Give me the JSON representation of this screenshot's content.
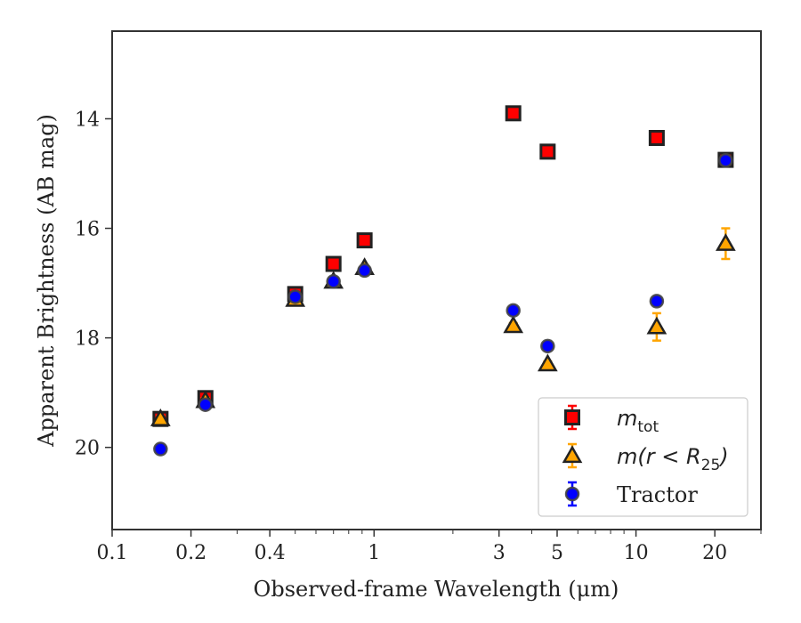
{
  "chart_data": {
    "type": "scatter",
    "xscale": "log",
    "yaxis_inverted": true,
    "xlim": [
      0.1,
      30
    ],
    "ylim": [
      21.5,
      12.4
    ],
    "xlabel": "Observed-frame Wavelength (μm)",
    "ylabel": "Apparent Brightness (AB mag)",
    "x_ticks": [
      {
        "value": 0.1,
        "label": "0.1"
      },
      {
        "value": 0.2,
        "label": "0.2"
      },
      {
        "value": 0.4,
        "label": "0.4"
      },
      {
        "value": 1,
        "label": "1"
      },
      {
        "value": 3,
        "label": "3"
      },
      {
        "value": 5,
        "label": "5"
      },
      {
        "value": 10,
        "label": "10"
      },
      {
        "value": 20,
        "label": "20"
      }
    ],
    "y_ticks": [
      {
        "value": 14,
        "label": "14"
      },
      {
        "value": 16,
        "label": "16"
      },
      {
        "value": 18,
        "label": "18"
      },
      {
        "value": 20,
        "label": "20"
      }
    ],
    "grid": false,
    "legend_position": "bottom-right",
    "series": [
      {
        "name": "m_tot",
        "legend_label": "m",
        "legend_sub": "tot",
        "marker": "square",
        "color": "#ff0000",
        "errbar_color": "#ff0000",
        "points": [
          {
            "x": 0.153,
            "y": 19.48,
            "err": 0.05
          },
          {
            "x": 0.227,
            "y": 19.1,
            "err": 0.05
          },
          {
            "x": 0.5,
            "y": 17.2,
            "err": 0.05
          },
          {
            "x": 0.7,
            "y": 16.65,
            "err": 0.05
          },
          {
            "x": 0.92,
            "y": 16.22,
            "err": 0.05
          },
          {
            "x": 3.4,
            "y": 13.9,
            "err": 0.05
          },
          {
            "x": 4.6,
            "y": 14.6,
            "err": 0.05
          },
          {
            "x": 12.0,
            "y": 14.35,
            "err": 0.05
          },
          {
            "x": 22.0,
            "y": 14.75,
            "err": 0.05
          }
        ]
      },
      {
        "name": "m(r<R25)",
        "legend_label": "m(r < R",
        "legend_sub": "25",
        "legend_tail": ")",
        "marker": "triangle",
        "color": "#ffa500",
        "errbar_color": "#ffa500",
        "points": [
          {
            "x": 0.153,
            "y": 19.48,
            "err": 0.05
          },
          {
            "x": 0.227,
            "y": 19.15,
            "err": 0.05
          },
          {
            "x": 0.5,
            "y": 17.3,
            "err": 0.05
          },
          {
            "x": 0.7,
            "y": 16.97,
            "err": 0.05
          },
          {
            "x": 0.92,
            "y": 16.72,
            "err": 0.05
          },
          {
            "x": 3.4,
            "y": 17.78,
            "err": 0.05
          },
          {
            "x": 4.6,
            "y": 18.48,
            "err": 0.05
          },
          {
            "x": 12.0,
            "y": 17.8,
            "err": 0.25
          },
          {
            "x": 22.0,
            "y": 16.28,
            "err": 0.28
          }
        ]
      },
      {
        "name": "Tractor",
        "legend_label": "Tractor",
        "marker": "circle",
        "color": "#0000ff",
        "errbar_color": "#0000ff",
        "points": [
          {
            "x": 0.153,
            "y": 20.03,
            "err": 0.05
          },
          {
            "x": 0.227,
            "y": 19.22,
            "err": 0.05
          },
          {
            "x": 0.5,
            "y": 17.25,
            "err": 0.05
          },
          {
            "x": 0.7,
            "y": 16.97,
            "err": 0.05
          },
          {
            "x": 0.92,
            "y": 16.77,
            "err": 0.05
          },
          {
            "x": 3.4,
            "y": 17.5,
            "err": 0.05
          },
          {
            "x": 4.6,
            "y": 18.15,
            "err": 0.05
          },
          {
            "x": 12.0,
            "y": 17.33,
            "err": 0.05
          },
          {
            "x": 22.0,
            "y": 14.76,
            "err": 0.05
          }
        ]
      }
    ]
  }
}
